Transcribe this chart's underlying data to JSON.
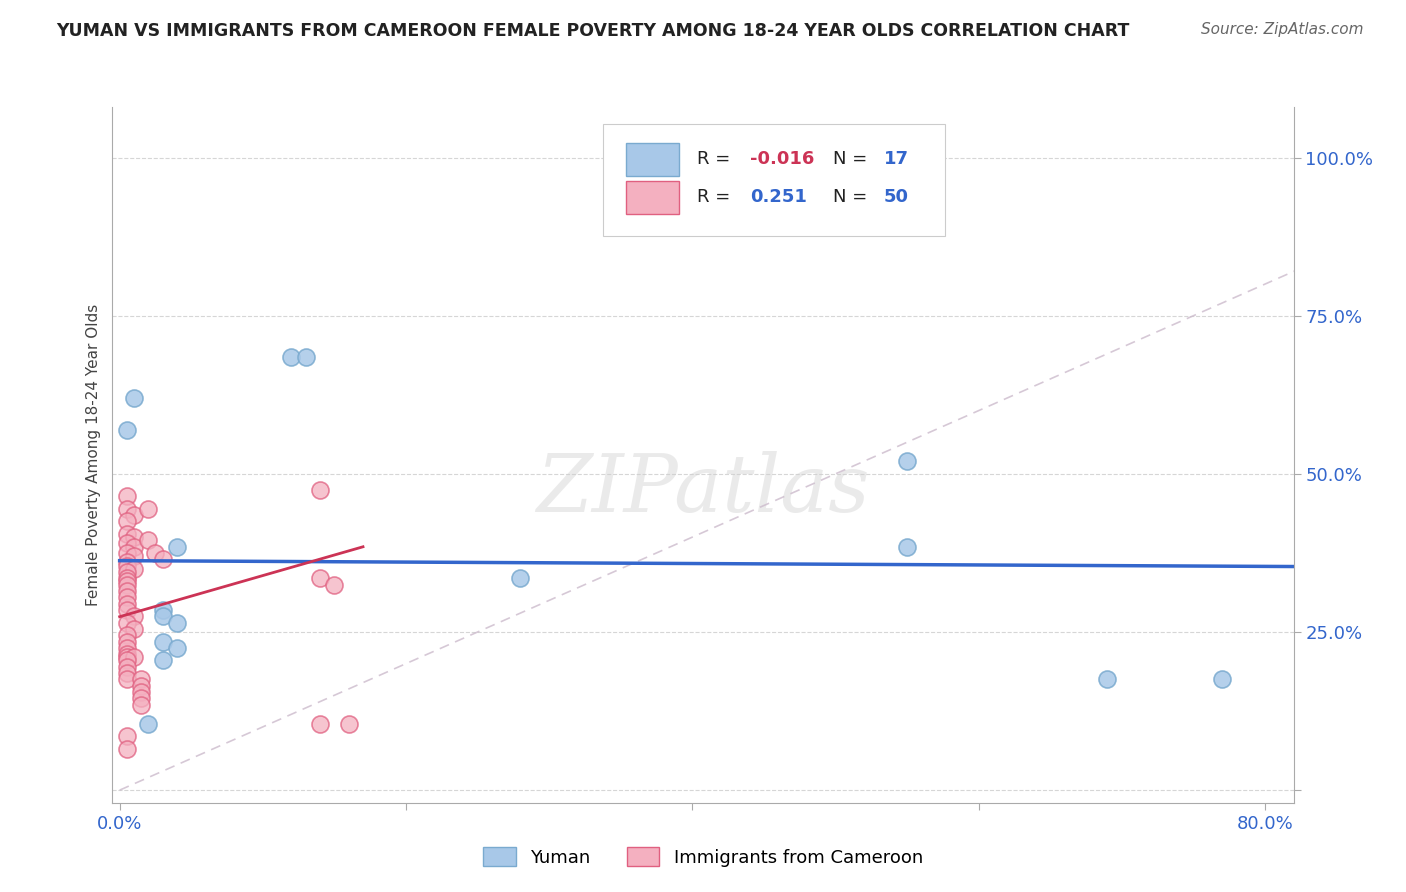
{
  "title": "YUMAN VS IMMIGRANTS FROM CAMEROON FEMALE POVERTY AMONG 18-24 YEAR OLDS CORRELATION CHART",
  "source": "Source: ZipAtlas.com",
  "ylabel": "Female Poverty Among 18-24 Year Olds",
  "xlim": [
    -0.005,
    0.82
  ],
  "ylim": [
    -0.02,
    1.08
  ],
  "y_ticks_right": [
    0.0,
    0.25,
    0.5,
    0.75,
    1.0
  ],
  "y_tick_labels_right": [
    "",
    "25.0%",
    "50.0%",
    "75.0%",
    "100.0%"
  ],
  "yuman_R": -0.016,
  "yuman_N": 17,
  "cameroon_R": 0.251,
  "cameroon_N": 50,
  "watermark": "ZIPatlas",
  "background_color": "#ffffff",
  "grid_color": "#cccccc",
  "yuman_color": "#a8c8e8",
  "yuman_edge_color": "#7aaacf",
  "cameroon_color": "#f4b0c0",
  "cameroon_edge_color": "#e06080",
  "yuman_line_color": "#3366cc",
  "cameroon_line_color": "#cc3355",
  "diagonal_line_color": "#ccbbcc",
  "yuman_points": [
    [
      0.01,
      0.62
    ],
    [
      0.005,
      0.57
    ],
    [
      0.12,
      0.685
    ],
    [
      0.13,
      0.685
    ],
    [
      0.04,
      0.385
    ],
    [
      0.03,
      0.285
    ],
    [
      0.03,
      0.275
    ],
    [
      0.04,
      0.265
    ],
    [
      0.03,
      0.235
    ],
    [
      0.04,
      0.225
    ],
    [
      0.03,
      0.205
    ],
    [
      0.55,
      0.52
    ],
    [
      0.55,
      0.385
    ],
    [
      0.28,
      0.335
    ],
    [
      0.69,
      0.175
    ],
    [
      0.77,
      0.175
    ],
    [
      0.02,
      0.105
    ]
  ],
  "cameroon_points": [
    [
      0.005,
      0.465
    ],
    [
      0.005,
      0.445
    ],
    [
      0.01,
      0.435
    ],
    [
      0.005,
      0.425
    ],
    [
      0.005,
      0.405
    ],
    [
      0.01,
      0.4
    ],
    [
      0.005,
      0.39
    ],
    [
      0.01,
      0.385
    ],
    [
      0.005,
      0.375
    ],
    [
      0.01,
      0.37
    ],
    [
      0.005,
      0.36
    ],
    [
      0.005,
      0.355
    ],
    [
      0.01,
      0.35
    ],
    [
      0.005,
      0.345
    ],
    [
      0.005,
      0.335
    ],
    [
      0.005,
      0.33
    ],
    [
      0.005,
      0.325
    ],
    [
      0.005,
      0.315
    ],
    [
      0.005,
      0.305
    ],
    [
      0.005,
      0.295
    ],
    [
      0.005,
      0.285
    ],
    [
      0.01,
      0.275
    ],
    [
      0.005,
      0.265
    ],
    [
      0.01,
      0.255
    ],
    [
      0.005,
      0.245
    ],
    [
      0.005,
      0.235
    ],
    [
      0.005,
      0.225
    ],
    [
      0.005,
      0.215
    ],
    [
      0.005,
      0.21
    ],
    [
      0.01,
      0.21
    ],
    [
      0.005,
      0.205
    ],
    [
      0.005,
      0.195
    ],
    [
      0.005,
      0.185
    ],
    [
      0.005,
      0.175
    ],
    [
      0.015,
      0.175
    ],
    [
      0.015,
      0.165
    ],
    [
      0.015,
      0.155
    ],
    [
      0.015,
      0.145
    ],
    [
      0.015,
      0.135
    ],
    [
      0.02,
      0.445
    ],
    [
      0.02,
      0.395
    ],
    [
      0.025,
      0.375
    ],
    [
      0.03,
      0.365
    ],
    [
      0.14,
      0.475
    ],
    [
      0.14,
      0.335
    ],
    [
      0.15,
      0.325
    ],
    [
      0.14,
      0.105
    ],
    [
      0.16,
      0.105
    ],
    [
      0.005,
      0.085
    ],
    [
      0.005,
      0.065
    ]
  ]
}
